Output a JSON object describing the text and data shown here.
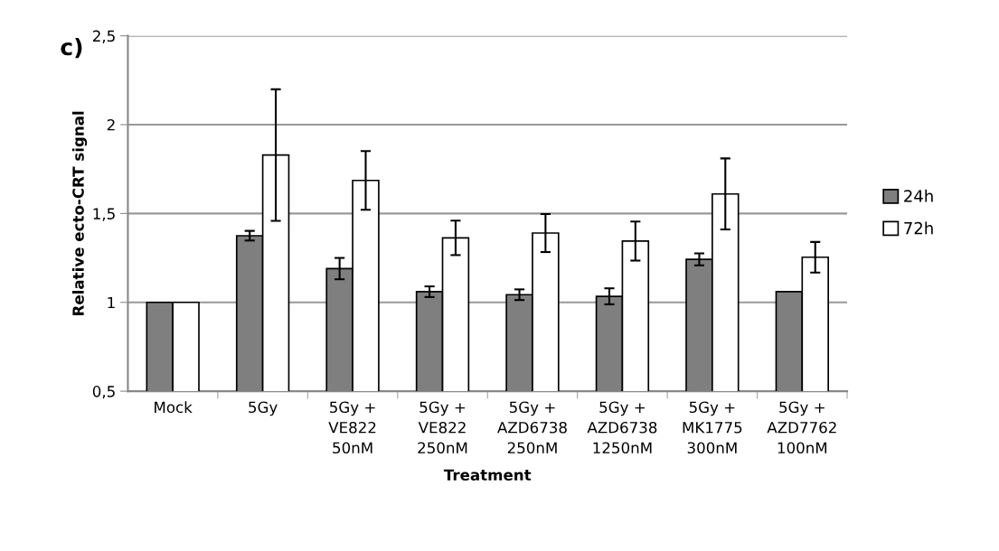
{
  "chart_data": {
    "type": "bar",
    "categories": [
      "Mock",
      "5Gy",
      "5Gy +\nVE822\n50nM",
      "5Gy +\nVE822\n250nM",
      "5Gy +\nAZD6738\n250nM",
      "5Gy +\nAZD6738\n1250nM",
      "5Gy +\nMK1775\n300nM",
      "5Gy +\nAZD7762\n100nM"
    ],
    "series": [
      {
        "name": "24h",
        "color": "#7f7f7f",
        "values": [
          1.0,
          1.375,
          1.19,
          1.06,
          1.043,
          1.034,
          1.242,
          1.06
        ],
        "errors": [
          null,
          0.027,
          0.06,
          0.03,
          0.03,
          0.045,
          0.034,
          null
        ]
      },
      {
        "name": "72h",
        "color": "#ffffff",
        "values": [
          1.0,
          1.829,
          1.686,
          1.363,
          1.39,
          1.345,
          1.61,
          1.254
        ],
        "errors": [
          null,
          0.37,
          0.165,
          0.097,
          0.107,
          0.11,
          0.2,
          0.086
        ]
      }
    ],
    "xlabel": "Treatment",
    "ylabel": "Relative ecto-CRT signal",
    "ylim": [
      0.5,
      2.5
    ],
    "yticks": [
      {
        "value": 0.5,
        "label": "0,5"
      },
      1,
      {
        "value": 1.5,
        "label": "1,5"
      },
      2,
      {
        "value": 2.5,
        "label": "2,5"
      }
    ],
    "grid": "y",
    "legend": "right",
    "annotations": [
      "c)"
    ]
  }
}
